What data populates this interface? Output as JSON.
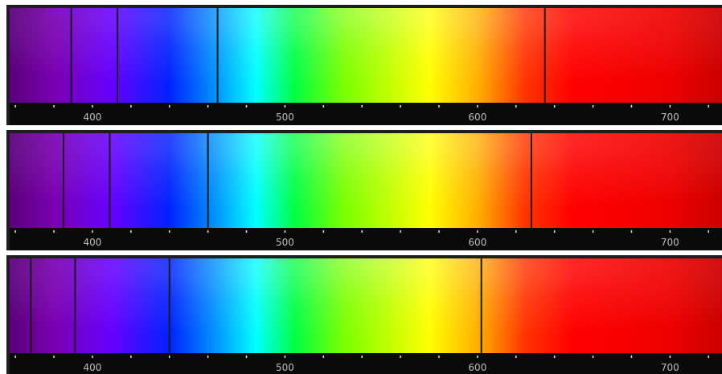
{
  "chart_data": {
    "type": "spectrum",
    "x_axis": {
      "unit": "",
      "range": [
        357,
        727
      ],
      "tick_labels": [
        "400",
        "500",
        "600",
        "700"
      ],
      "tick_values": [
        400,
        500,
        600,
        700
      ],
      "minor_tick_step": 20
    },
    "panels": [
      {
        "lines": [
          389,
          413,
          465,
          635
        ]
      },
      {
        "lines": [
          385,
          409,
          460,
          628
        ]
      },
      {
        "lines": [
          368,
          391,
          440,
          602
        ]
      }
    ],
    "colors": {
      "gradient_stops": [
        {
          "nm": 357,
          "color": "#5a007a"
        },
        {
          "nm": 380,
          "color": "#7a00b0"
        },
        {
          "nm": 410,
          "color": "#6600ff"
        },
        {
          "nm": 440,
          "color": "#0022ff"
        },
        {
          "nm": 465,
          "color": "#0099ff"
        },
        {
          "nm": 485,
          "color": "#00ffff"
        },
        {
          "nm": 505,
          "color": "#00ff44"
        },
        {
          "nm": 530,
          "color": "#77ff00"
        },
        {
          "nm": 575,
          "color": "#ffff00"
        },
        {
          "nm": 600,
          "color": "#ffb000"
        },
        {
          "nm": 625,
          "color": "#ff3300"
        },
        {
          "nm": 650,
          "color": "#ff0000"
        },
        {
          "nm": 700,
          "color": "#ee0000"
        },
        {
          "nm": 727,
          "color": "#cc0000"
        }
      ],
      "line": "#1a1a1a",
      "axis_band": "#0a0a0a",
      "tick": "#e0e0e0",
      "tick_text": "#bdbdbd",
      "frame": "#1e1e1e"
    }
  }
}
